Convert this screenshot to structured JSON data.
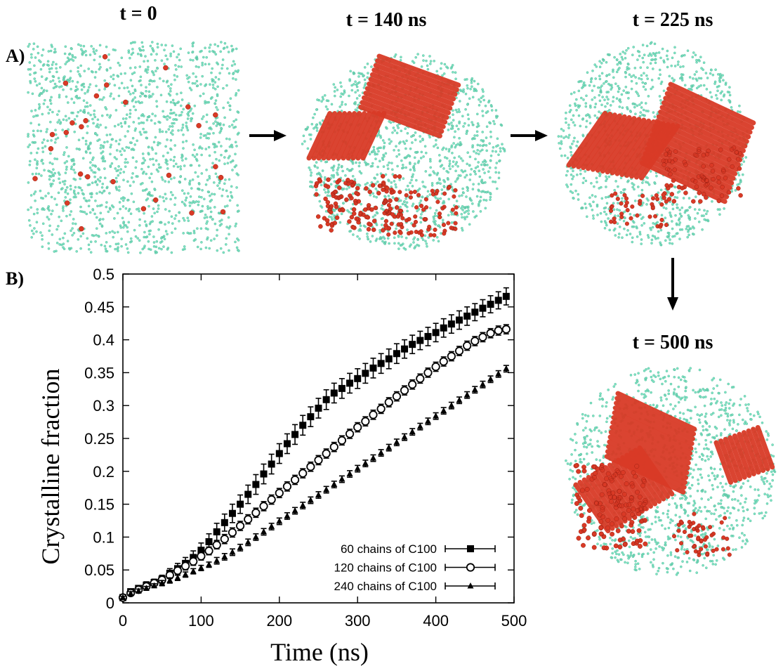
{
  "panels": {
    "a_label": "A)",
    "b_label": "B)"
  },
  "snapshots": [
    {
      "title": "t = 0"
    },
    {
      "title": "t = 140 ns"
    },
    {
      "title": "t = 225 ns"
    },
    {
      "title": "t = 500 ns"
    }
  ],
  "colors": {
    "amorphous": "#7fe3c4",
    "crystalline": "#d93a26",
    "axis": "#000000"
  },
  "chart_data": {
    "type": "scatter",
    "title": "",
    "xlabel": "Time (ns)",
    "ylabel": "Crystalline fraction",
    "xlim": [
      0,
      500
    ],
    "ylim": [
      0,
      0.5
    ],
    "xticks": [
      0,
      100,
      200,
      300,
      400,
      500
    ],
    "xtick_labels": [
      "0",
      "100",
      "200",
      "300",
      "400",
      "500"
    ],
    "yticks": [
      0,
      0.05,
      0.1,
      0.15,
      0.2,
      0.25,
      0.3,
      0.35,
      0.4,
      0.45,
      0.5
    ],
    "ytick_labels": [
      "0",
      "0.05",
      "0.1",
      "0.15",
      "0.2",
      "0.25",
      "0.3",
      "0.35",
      "0.4",
      "0.45",
      "0.5"
    ],
    "grid": false,
    "legend_position": "bottom-right",
    "x": [
      0,
      10,
      20,
      30,
      40,
      50,
      60,
      70,
      80,
      90,
      100,
      110,
      120,
      130,
      140,
      150,
      160,
      170,
      180,
      190,
      200,
      210,
      220,
      230,
      240,
      250,
      260,
      270,
      280,
      290,
      300,
      310,
      320,
      330,
      340,
      350,
      360,
      370,
      380,
      390,
      400,
      410,
      420,
      430,
      440,
      450,
      460,
      470,
      480,
      490
    ],
    "series": [
      {
        "name": "60 chains of C100",
        "marker": "filled-square",
        "values": [
          0.008,
          0.017,
          0.022,
          0.027,
          0.031,
          0.036,
          0.045,
          0.052,
          0.06,
          0.069,
          0.08,
          0.093,
          0.108,
          0.122,
          0.136,
          0.15,
          0.165,
          0.18,
          0.196,
          0.211,
          0.227,
          0.242,
          0.256,
          0.27,
          0.283,
          0.296,
          0.309,
          0.319,
          0.326,
          0.334,
          0.341,
          0.349,
          0.357,
          0.364,
          0.371,
          0.379,
          0.386,
          0.393,
          0.399,
          0.405,
          0.411,
          0.418,
          0.424,
          0.43,
          0.436,
          0.442,
          0.448,
          0.454,
          0.46,
          0.466
        ],
        "errors": [
          0.003,
          0.004,
          0.004,
          0.005,
          0.005,
          0.006,
          0.007,
          0.008,
          0.009,
          0.01,
          0.011,
          0.012,
          0.013,
          0.013,
          0.014,
          0.014,
          0.014,
          0.015,
          0.015,
          0.015,
          0.015,
          0.015,
          0.015,
          0.015,
          0.015,
          0.015,
          0.015,
          0.015,
          0.015,
          0.015,
          0.015,
          0.015,
          0.015,
          0.015,
          0.015,
          0.015,
          0.014,
          0.014,
          0.014,
          0.014,
          0.014,
          0.014,
          0.014,
          0.014,
          0.014,
          0.013,
          0.013,
          0.013,
          0.013,
          0.013
        ]
      },
      {
        "name": "120 chains of C100",
        "marker": "open-circle",
        "values": [
          0.008,
          0.015,
          0.02,
          0.025,
          0.03,
          0.035,
          0.042,
          0.049,
          0.056,
          0.063,
          0.071,
          0.079,
          0.088,
          0.097,
          0.107,
          0.117,
          0.127,
          0.137,
          0.147,
          0.157,
          0.167,
          0.177,
          0.187,
          0.197,
          0.207,
          0.217,
          0.227,
          0.237,
          0.247,
          0.257,
          0.267,
          0.276,
          0.286,
          0.295,
          0.305,
          0.314,
          0.323,
          0.332,
          0.341,
          0.35,
          0.359,
          0.367,
          0.375,
          0.383,
          0.391,
          0.398,
          0.404,
          0.41,
          0.414,
          0.416
        ],
        "errors": [
          0.003,
          0.003,
          0.004,
          0.004,
          0.004,
          0.005,
          0.005,
          0.005,
          0.006,
          0.006,
          0.006,
          0.006,
          0.006,
          0.007,
          0.007,
          0.007,
          0.007,
          0.007,
          0.007,
          0.007,
          0.007,
          0.007,
          0.007,
          0.007,
          0.007,
          0.007,
          0.007,
          0.007,
          0.007,
          0.007,
          0.007,
          0.007,
          0.007,
          0.007,
          0.007,
          0.007,
          0.007,
          0.007,
          0.007,
          0.007,
          0.007,
          0.007,
          0.007,
          0.007,
          0.007,
          0.007,
          0.007,
          0.007,
          0.007,
          0.007
        ]
      },
      {
        "name": "240 chains of C100",
        "marker": "filled-triangle",
        "values": [
          0.008,
          0.014,
          0.018,
          0.022,
          0.026,
          0.03,
          0.034,
          0.038,
          0.043,
          0.048,
          0.053,
          0.058,
          0.064,
          0.07,
          0.077,
          0.084,
          0.092,
          0.1,
          0.108,
          0.116,
          0.124,
          0.132,
          0.14,
          0.148,
          0.156,
          0.164,
          0.172,
          0.18,
          0.188,
          0.196,
          0.204,
          0.212,
          0.22,
          0.228,
          0.236,
          0.244,
          0.252,
          0.26,
          0.268,
          0.276,
          0.284,
          0.292,
          0.3,
          0.308,
          0.316,
          0.324,
          0.332,
          0.34,
          0.348,
          0.356
        ],
        "errors": [
          0.002,
          0.003,
          0.003,
          0.003,
          0.003,
          0.004,
          0.004,
          0.004,
          0.004,
          0.004,
          0.004,
          0.004,
          0.005,
          0.005,
          0.005,
          0.005,
          0.005,
          0.005,
          0.005,
          0.005,
          0.005,
          0.005,
          0.005,
          0.005,
          0.005,
          0.005,
          0.005,
          0.005,
          0.005,
          0.005,
          0.005,
          0.005,
          0.005,
          0.005,
          0.005,
          0.005,
          0.005,
          0.005,
          0.005,
          0.005,
          0.005,
          0.005,
          0.005,
          0.005,
          0.005,
          0.005,
          0.005,
          0.005,
          0.005,
          0.005
        ]
      }
    ]
  }
}
